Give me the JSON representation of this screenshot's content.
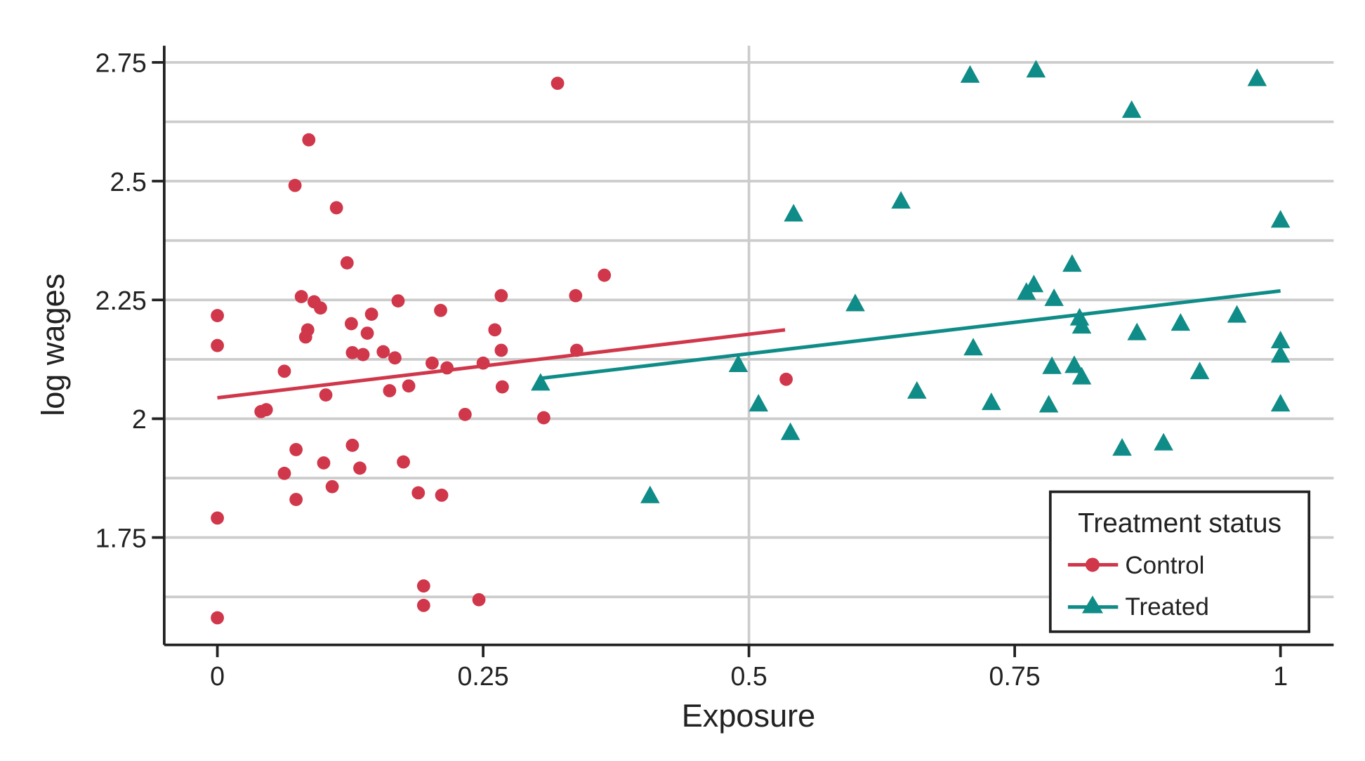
{
  "chart_data": {
    "type": "scatter",
    "xlabel": "Exposure",
    "ylabel": "log wages",
    "xlim": [
      -0.05,
      1.05
    ],
    "ylim": [
      1.524,
      2.785
    ],
    "xticks": [
      0,
      0.25,
      0.5,
      0.75,
      1
    ],
    "xtick_labels": [
      "0",
      "0.25",
      "0.5",
      "0.75",
      "1"
    ],
    "yticks": [
      1.75,
      2,
      2.25,
      2.5,
      2.75
    ],
    "ytick_labels": [
      "1.75",
      "2",
      "2.25",
      "2.5",
      "2.75"
    ],
    "y_gridlines": [
      1.625,
      1.75,
      1.875,
      2,
      2.125,
      2.25,
      2.375,
      2.5,
      2.625,
      2.75
    ],
    "x_gridlines": [
      0.5
    ],
    "grid": true,
    "legend": {
      "title": "Treatment status",
      "placement": "bottom-right"
    },
    "colors": {
      "control": "#d0374a",
      "treated": "#0f8c87",
      "grid": "#cccccc",
      "axis": "#222222"
    },
    "series": [
      {
        "name": "Control",
        "marker": "circle",
        "points": [
          [
            0.32,
            2.706
          ],
          [
            0.086,
            2.587
          ],
          [
            0.073,
            2.491
          ],
          [
            0.112,
            2.444
          ],
          [
            0.122,
            2.328
          ],
          [
            0.364,
            2.302
          ],
          [
            0.267,
            2.259
          ],
          [
            0.337,
            2.259
          ],
          [
            0.079,
            2.257
          ],
          [
            0.091,
            2.246
          ],
          [
            0.17,
            2.248
          ],
          [
            0.097,
            2.233
          ],
          [
            0,
            2.217
          ],
          [
            0.21,
            2.228
          ],
          [
            0.145,
            2.22
          ],
          [
            0.126,
            2.2
          ],
          [
            0.261,
            2.187
          ],
          [
            0.085,
            2.187
          ],
          [
            0.141,
            2.18
          ],
          [
            0.083,
            2.172
          ],
          [
            0,
            2.154
          ],
          [
            0.127,
            2.139
          ],
          [
            0.137,
            2.135
          ],
          [
            0.156,
            2.141
          ],
          [
            0.167,
            2.128
          ],
          [
            0.267,
            2.144
          ],
          [
            0.338,
            2.144
          ],
          [
            0.202,
            2.117
          ],
          [
            0.216,
            2.107
          ],
          [
            0.25,
            2.117
          ],
          [
            0.063,
            2.1
          ],
          [
            0.102,
            2.05
          ],
          [
            0.162,
            2.059
          ],
          [
            0.18,
            2.069
          ],
          [
            0.268,
            2.067
          ],
          [
            0.535,
            2.083
          ],
          [
            0.233,
            2.009
          ],
          [
            0.307,
            2.002
          ],
          [
            0.041,
            2.015
          ],
          [
            0.046,
            2.019
          ],
          [
            0.074,
            1.935
          ],
          [
            0.127,
            1.944
          ],
          [
            0.1,
            1.907
          ],
          [
            0.134,
            1.896
          ],
          [
            0.175,
            1.909
          ],
          [
            0.063,
            1.885
          ],
          [
            0.108,
            1.857
          ],
          [
            0.189,
            1.844
          ],
          [
            0.211,
            1.839
          ],
          [
            0.074,
            1.83
          ],
          [
            0,
            1.791
          ],
          [
            0.194,
            1.648
          ],
          [
            0.194,
            1.607
          ],
          [
            0.246,
            1.619
          ],
          [
            0,
            1.581
          ]
        ],
        "fit_line": [
          [
            0,
            2.044
          ],
          [
            0.534,
            2.187
          ]
        ]
      },
      {
        "name": "Treated",
        "marker": "triangle",
        "points": [
          [
            0.708,
            2.722
          ],
          [
            0.77,
            2.733
          ],
          [
            0.978,
            2.715
          ],
          [
            0.86,
            2.648
          ],
          [
            0.542,
            2.43
          ],
          [
            0.643,
            2.457
          ],
          [
            1,
            2.417
          ],
          [
            0.804,
            2.324
          ],
          [
            0.768,
            2.281
          ],
          [
            0.761,
            2.265
          ],
          [
            0.787,
            2.252
          ],
          [
            0.6,
            2.241
          ],
          [
            0.811,
            2.211
          ],
          [
            0.813,
            2.194
          ],
          [
            0.959,
            2.217
          ],
          [
            0.906,
            2.2
          ],
          [
            0.865,
            2.18
          ],
          [
            1,
            2.163
          ],
          [
            0.711,
            2.148
          ],
          [
            1,
            2.133
          ],
          [
            0.49,
            2.113
          ],
          [
            0.785,
            2.109
          ],
          [
            0.806,
            2.111
          ],
          [
            0.813,
            2.087
          ],
          [
            0.924,
            2.098
          ],
          [
            0.304,
            2.074
          ],
          [
            0.658,
            2.057
          ],
          [
            0.509,
            2.03
          ],
          [
            0.728,
            2.033
          ],
          [
            0.782,
            2.028
          ],
          [
            1,
            2.03
          ],
          [
            0.539,
            1.97
          ],
          [
            0.851,
            1.937
          ],
          [
            0.89,
            1.948
          ],
          [
            0.407,
            1.837
          ]
        ],
        "fit_line": [
          [
            0.304,
            2.085
          ],
          [
            1,
            2.269
          ]
        ]
      }
    ]
  }
}
